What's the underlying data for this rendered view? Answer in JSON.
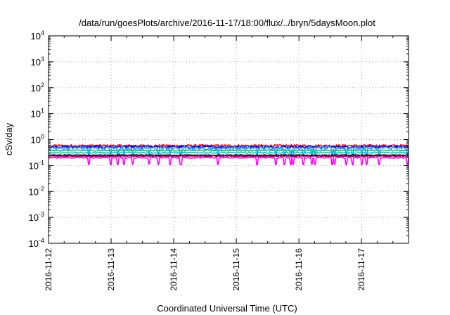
{
  "chart_data": {
    "type": "line",
    "title": "/data/run/goesPlots/archive/2016-11-17/18:00/flux/../bryn/5daysMoon.plot",
    "xlabel": "Coordinated Universal Time (UTC)",
    "ylabel": "cSv/day",
    "yscale": "log",
    "ylim": [
      0.0001,
      10000
    ],
    "ytick_base": "10",
    "ytick_exponents": [
      "-4",
      "-3",
      "-2",
      "-1",
      "0",
      "1",
      "2",
      "3",
      "4"
    ],
    "xlim": [
      "2016-11-12 00:00",
      "2016-11-17 18:00"
    ],
    "xtick_labels": [
      "2016-11-12",
      "2016-11-13",
      "2016-11-14",
      "2016-11-15",
      "2016-11-16",
      "2016-11-17"
    ],
    "grid": true,
    "series": [
      {
        "color": "#ff0000",
        "base": 0.58,
        "noise": 0.1,
        "dips": false
      },
      {
        "color": "#0000ff",
        "base": 0.52,
        "noise": 0.1,
        "dips": false
      },
      {
        "color": "#3399ff",
        "base": 0.47,
        "noise": 0.14,
        "dips": true
      },
      {
        "color": "#00cc66",
        "base": 0.38,
        "noise": 0.06,
        "dips": false
      },
      {
        "color": "#00cccc",
        "base": 0.31,
        "noise": 0.05,
        "dips": false
      },
      {
        "color": "#000000",
        "base": 0.25,
        "noise": 0.04,
        "dips": false
      },
      {
        "color": "#aa0044",
        "base": 0.23,
        "noise": 0.04,
        "dips": false
      },
      {
        "color": "#ff00ff",
        "base": 0.2,
        "noise": 0.05,
        "dips": true
      }
    ]
  }
}
